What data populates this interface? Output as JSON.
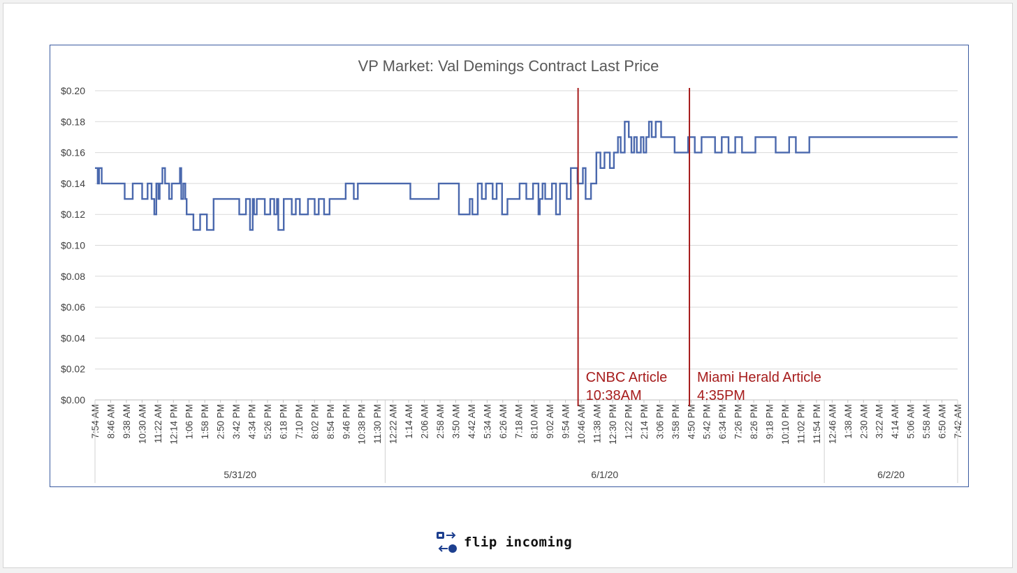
{
  "colors": {
    "line": "#4a68ad",
    "event_line": "#a61c1c",
    "grid": "#d9d9d9",
    "axis_text": "#404040",
    "title_text": "#595959",
    "frame": "#3a5a9f"
  },
  "brand": {
    "name": "flip incoming",
    "icon": "flip-arrows-logo"
  },
  "chart_data": {
    "type": "line",
    "title": "VP Market: Val Demings Contract Last Price",
    "xlabel": "",
    "ylabel": "",
    "ylim": [
      0,
      0.2
    ],
    "y_ticks": [
      "$0.00",
      "$0.02",
      "$0.04",
      "$0.06",
      "$0.08",
      "$0.10",
      "$0.12",
      "$0.14",
      "$0.16",
      "$0.18",
      "$0.20"
    ],
    "grid": true,
    "legend": "none",
    "x_tick_labels": [
      "7:54 AM",
      "8:46 AM",
      "9:38 AM",
      "10:30 AM",
      "11:22 AM",
      "12:14 PM",
      "1:06 PM",
      "1:58 PM",
      "2:50 PM",
      "3:42 PM",
      "4:34 PM",
      "5:26 PM",
      "6:18 PM",
      "7:10 PM",
      "8:02 PM",
      "8:54 PM",
      "9:46 PM",
      "10:38 PM",
      "11:30 PM",
      "12:22 AM",
      "1:14 AM",
      "2:06 AM",
      "2:58 AM",
      "3:50 AM",
      "4:42 AM",
      "5:34 AM",
      "6:26 AM",
      "7:18 AM",
      "8:10 AM",
      "9:02 AM",
      "9:54 AM",
      "10:46 AM",
      "11:38 AM",
      "12:30 PM",
      "1:22 PM",
      "2:14 PM",
      "3:06 PM",
      "3:58 PM",
      "4:50 PM",
      "5:42 PM",
      "6:34 PM",
      "7:26 PM",
      "8:26 PM",
      "9:18 PM",
      "10:10 PM",
      "11:02 PM",
      "11:54 PM",
      "12:46 AM",
      "1:38 AM",
      "2:30 AM",
      "3:22 AM",
      "4:14 AM",
      "5:06 AM",
      "5:58 AM",
      "6:50 AM",
      "7:42 AM"
    ],
    "date_groups": [
      {
        "label": "5/31/20",
        "from": 0,
        "to": 18
      },
      {
        "label": "6/1/20",
        "from": 19,
        "to": 46
      },
      {
        "label": "6/2/20",
        "from": 47,
        "to": 55
      }
    ],
    "series": [
      {
        "x": [
          0,
          0.2,
          0.3,
          0.5,
          2.2,
          2.8,
          3.5,
          3.9,
          4.2,
          4.4,
          4.55,
          4.7,
          4.8,
          5.0,
          5.2,
          5.5,
          5.7,
          6.3,
          6.4,
          6.55,
          6.7,
          6.8,
          6.95,
          7.3,
          7.8,
          8.0,
          8.3,
          8.8,
          9.2,
          9.5,
          10.7,
          11.2,
          11.5,
          11.7,
          11.8,
          12.0,
          12.6,
          13.0,
          13.3,
          13.5,
          13.6,
          14.0,
          14.6,
          14.9,
          15.2,
          15.8,
          16.3,
          16.6,
          17.0,
          17.4,
          18.0,
          18.6,
          19.0,
          19.2,
          19.5,
          20.2,
          21.4,
          23.4,
          23.5,
          25.0,
          25.5,
          26.6,
          27.0,
          27.8,
          28.0,
          28.4,
          28.7,
          29.0,
          29.5,
          29.8,
          30.2,
          30.6,
          31.0,
          31.5,
          32.0,
          32.5,
          32.9,
          33.0,
          33.2,
          33.4,
          33.9,
          34.2,
          34.5,
          35.0,
          35.3,
          35.8,
          36.2,
          36.4,
          36.8,
          37.2,
          37.5,
          37.8,
          38.2,
          38.5,
          38.8,
          39.0,
          39.3,
          39.6,
          39.8,
          40.0,
          40.2,
          40.5,
          40.7,
          40.9,
          41.1,
          41.3,
          41.6,
          42.0,
          43.0,
          44.0,
          44.5,
          45.0,
          46.0,
          46.5,
          47.0,
          47.5,
          48.0,
          49.0,
          50.5,
          51.5,
          52.0,
          53.0,
          54.0,
          55.0,
          56.0,
          57.0,
          58.0,
          59.0,
          60.0,
          62.0,
          64.0
        ],
        "y": [
          0.15,
          0.14,
          0.15,
          0.14,
          0.13,
          0.14,
          0.13,
          0.14,
          0.13,
          0.12,
          0.14,
          0.13,
          0.14,
          0.15,
          0.14,
          0.13,
          0.14,
          0.15,
          0.13,
          0.14,
          0.13,
          0.12,
          0.12,
          0.11,
          0.12,
          0.12,
          0.11,
          0.13,
          0.13,
          0.13,
          0.12,
          0.13,
          0.11,
          0.13,
          0.12,
          0.13,
          0.12,
          0.13,
          0.12,
          0.13,
          0.11,
          0.13,
          0.12,
          0.13,
          0.12,
          0.13,
          0.12,
          0.13,
          0.12,
          0.13,
          0.13,
          0.14,
          0.14,
          0.13,
          0.14,
          0.14,
          0.14,
          0.13,
          0.13,
          0.13,
          0.14,
          0.14,
          0.12,
          0.13,
          0.12,
          0.14,
          0.13,
          0.14,
          0.13,
          0.14,
          0.12,
          0.13,
          0.13,
          0.14,
          0.13,
          0.14,
          0.12,
          0.13,
          0.14,
          0.13,
          0.14,
          0.12,
          0.14,
          0.13,
          0.15,
          0.14,
          0.15,
          0.13,
          0.14,
          0.16,
          0.15,
          0.16,
          0.15,
          0.16,
          0.17,
          0.16,
          0.18,
          0.17,
          0.16,
          0.17,
          0.16,
          0.17,
          0.16,
          0.17,
          0.18,
          0.17,
          0.18,
          0.17,
          0.16,
          0.17,
          0.16,
          0.17,
          0.16,
          0.17,
          0.16,
          0.17,
          0.16,
          0.17,
          0.16,
          0.17,
          0.16,
          0.17,
          0.17,
          0.17,
          0.17,
          0.17,
          0.17,
          0.17,
          0.17,
          0.17,
          0.17
        ]
      }
    ],
    "annotations": [
      {
        "line1": "CNBC Article",
        "line2": "10:38AM",
        "x_label_anchor": 30.8
      },
      {
        "line1": "Miami Herald Article",
        "line2": "4:35PM",
        "x_label_anchor": 37.9
      }
    ]
  }
}
